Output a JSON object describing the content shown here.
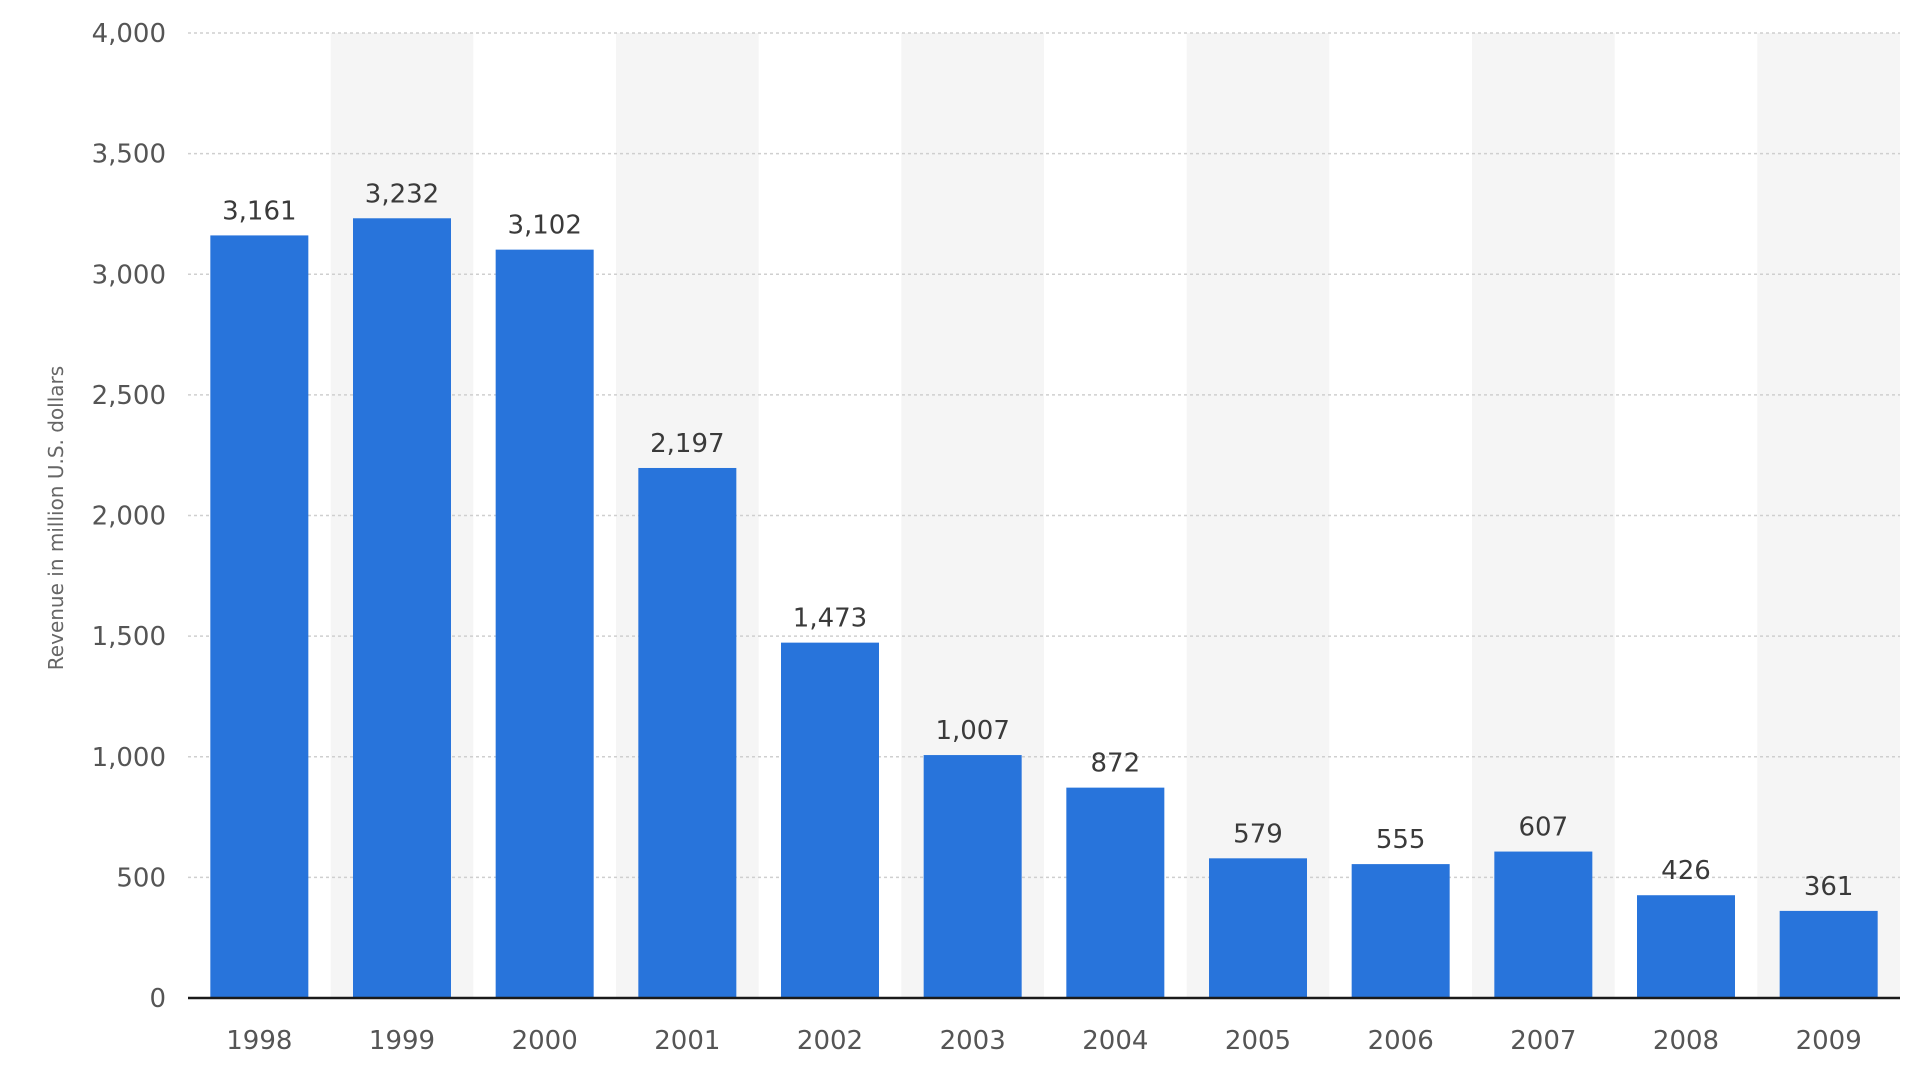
{
  "chart_data": {
    "type": "bar",
    "categories": [
      "1998",
      "1999",
      "2000",
      "2001",
      "2002",
      "2003",
      "2004",
      "2005",
      "2006",
      "2007",
      "2008",
      "2009"
    ],
    "values": [
      3161,
      3232,
      3102,
      2197,
      1473,
      1007,
      872,
      579,
      555,
      607,
      426,
      361
    ],
    "value_labels": [
      "3,161",
      "3,232",
      "3,102",
      "2,197",
      "1,473",
      "1,007",
      "872",
      "579",
      "555",
      "607",
      "426",
      "361"
    ],
    "ylabel": "Revenue in million U.S. dollars",
    "ylim": [
      0,
      4000
    ],
    "yticks": [
      0,
      500,
      1000,
      1500,
      2000,
      2500,
      3000,
      3500,
      4000
    ],
    "ytick_labels": [
      "0",
      "500",
      "1,000",
      "1,500",
      "2,000",
      "2,500",
      "3,000",
      "3,500",
      "4,000"
    ],
    "grid": true,
    "colors": {
      "bar": "#2874db",
      "band": "#f5f5f5",
      "grid": "#cfcfcf",
      "axis": "#1a1a1a"
    }
  }
}
